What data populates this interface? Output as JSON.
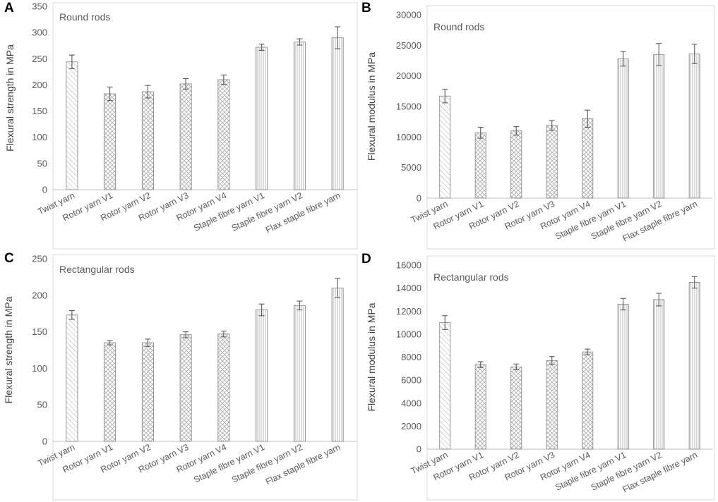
{
  "figure": {
    "categories": [
      "Twist yarn",
      "Rotor yarn V1",
      "Rotor yarn V2",
      "Rotor yarn V3",
      "Rotor yarn V4",
      "Staple fibre yarn V1",
      "Staple fibre yarn V2",
      "Flax staple fibre yarn"
    ],
    "colors": {
      "bar_stroke": "#8c8c8c",
      "hatch": "#a6a6a6",
      "error_bar": "#595959",
      "axis": "#bfbfbf",
      "frame": "#d9d9d9",
      "text": "#595959"
    }
  },
  "chart_data": [
    {
      "label": "A",
      "type": "bar",
      "title": "Round rods",
      "xlabel": "",
      "ylabel": "Flexural strength in MPa",
      "ylim": [
        0,
        350
      ],
      "yticks": [
        0,
        50,
        100,
        150,
        200,
        250,
        300,
        350
      ],
      "categories": [
        "Twist yarn",
        "Rotor yarn V1",
        "Rotor yarn V2",
        "Rotor yarn V3",
        "Rotor yarn V4",
        "Staple fibre yarn V1",
        "Staple fibre yarn V2",
        "Flax staple fibre yarn"
      ],
      "values": [
        244,
        183,
        187,
        202,
        210,
        272,
        282,
        290
      ],
      "errors": [
        13,
        13,
        12,
        10,
        9,
        6,
        6,
        21
      ]
    },
    {
      "label": "B",
      "type": "bar",
      "title": "Round rods",
      "xlabel": "",
      "ylabel": "Flexural modulus in MPa",
      "ylim": [
        0,
        30000
      ],
      "yticks": [
        0,
        5000,
        10000,
        15000,
        20000,
        25000,
        30000
      ],
      "categories": [
        "Twist yarn",
        "Rotor yarn V1",
        "Rotor yarn V2",
        "Rotor yarn V3",
        "Rotor yarn V4",
        "Staple fibre yarn V1",
        "Staple fibre yarn V2",
        "Flax staple fibre yarn"
      ],
      "values": [
        16700,
        10700,
        11000,
        11900,
        13000,
        22800,
        23500,
        23600
      ],
      "errors": [
        1100,
        900,
        700,
        800,
        1400,
        1200,
        1800,
        1600
      ]
    },
    {
      "label": "C",
      "type": "bar",
      "title": "Rectangular rods",
      "xlabel": "",
      "ylabel": "Flexural strength in MPa",
      "ylim": [
        0,
        250
      ],
      "yticks": [
        0,
        50,
        100,
        150,
        200,
        250
      ],
      "categories": [
        "Twist yarn",
        "Rotor yarn V1",
        "Rotor yarn V2",
        "Rotor yarn V3",
        "Rotor yarn V4",
        "Staple fibre yarn V1",
        "Staple fibre yarn V2",
        "Flax staple fibre yarn"
      ],
      "values": [
        173,
        135,
        135,
        146,
        147,
        180,
        186,
        210
      ],
      "errors": [
        6,
        3,
        5,
        4,
        4,
        8,
        6,
        13
      ]
    },
    {
      "label": "D",
      "type": "bar",
      "title": "Rectangular rods",
      "xlabel": "",
      "ylabel": "Flexural modulus in MPa",
      "ylim": [
        0,
        16000
      ],
      "yticks": [
        0,
        2000,
        4000,
        6000,
        8000,
        10000,
        12000,
        14000,
        16000
      ],
      "categories": [
        "Twist yarn",
        "Rotor yarn V1",
        "Rotor yarn V2",
        "Rotor yarn V3",
        "Rotor yarn V4",
        "Staple fibre yarn V1",
        "Staple fibre yarn V2",
        "Flax staple fibre yarn"
      ],
      "values": [
        11000,
        7350,
        7150,
        7700,
        8450,
        12600,
        13000,
        14500
      ],
      "errors": [
        600,
        250,
        250,
        350,
        250,
        500,
        550,
        500
      ]
    }
  ]
}
